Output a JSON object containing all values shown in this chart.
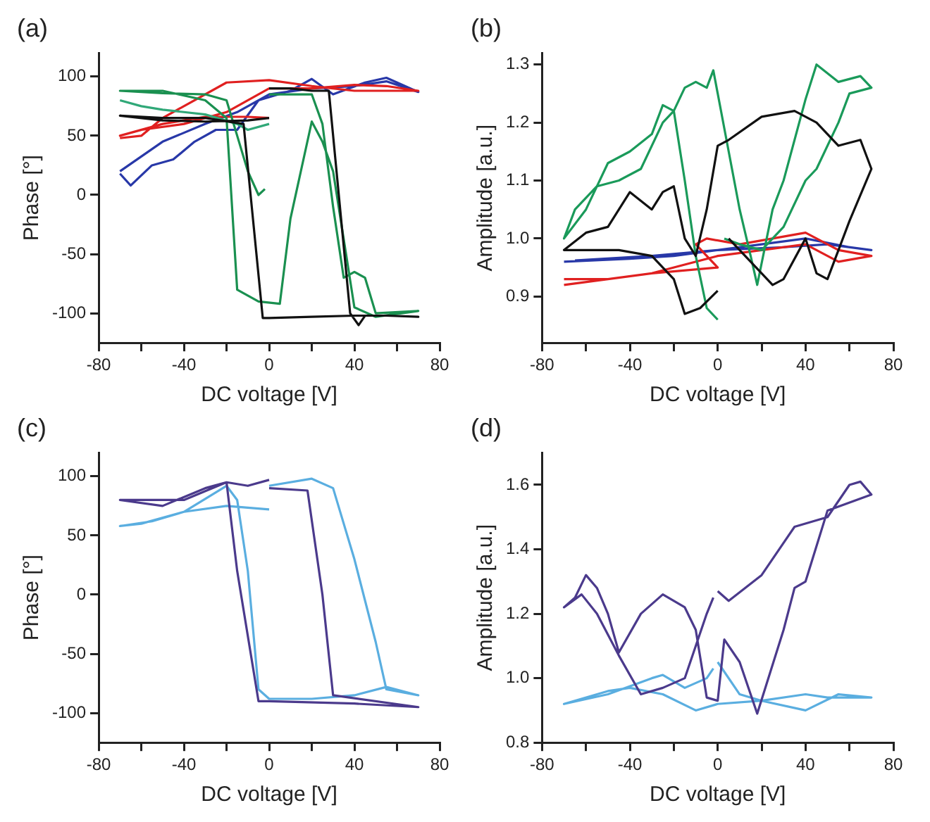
{
  "chart_data": [
    {
      "type": "line",
      "title": "(a)",
      "xlabel": "DC voltage [V]",
      "ylabel": "Phase [°]",
      "xlim": [
        -80,
        80
      ],
      "xticks": [
        -80,
        {
          "value": -60,
          "label": null
        },
        -40,
        {
          "value": -20,
          "label": null
        },
        0,
        {
          "value": 20,
          "label": null
        },
        40,
        {
          "value": 60,
          "label": null
        },
        80
      ],
      "ylim": [
        -125,
        120
      ],
      "yticks": [
        -100,
        -50,
        0,
        50,
        100
      ],
      "series": [
        {
          "color": "#111111",
          "x": [
            0,
            10,
            20,
            28,
            38,
            42,
            45,
            55,
            70,
            55,
            40,
            20,
            0,
            -3,
            -12,
            -30,
            -50,
            -70,
            -50,
            -30,
            -10,
            0
          ],
          "values": [
            90,
            90,
            88,
            88,
            -100,
            -110,
            -102,
            -102,
            -103,
            -102,
            -102,
            -103,
            -104,
            -104,
            60,
            65,
            65,
            67,
            63,
            62,
            63,
            65
          ]
        },
        {
          "color": "#1a9050",
          "x": [
            0,
            10,
            20,
            25,
            30,
            35,
            40,
            45,
            50,
            70,
            50,
            40,
            30,
            25,
            20,
            10,
            5,
            -5,
            -15,
            -20,
            -30,
            -50,
            -70,
            -50,
            -30,
            -20,
            -15,
            -10,
            -5,
            -2
          ],
          "values": [
            85,
            85,
            85,
            60,
            -10,
            -70,
            -65,
            -70,
            -100,
            -98,
            -103,
            -95,
            20,
            45,
            62,
            -20,
            -92,
            -90,
            -80,
            65,
            80,
            88,
            88,
            86,
            85,
            80,
            50,
            20,
            0,
            5
          ]
        },
        {
          "color": "#30a878",
          "x": [
            -70,
            -60,
            -50,
            -40,
            -30,
            -15,
            -10,
            0
          ],
          "values": [
            80,
            75,
            72,
            70,
            68,
            60,
            55,
            60
          ]
        },
        {
          "color": "#e02020",
          "x": [
            -70,
            -60,
            -50,
            -40,
            -20,
            0,
            20,
            40,
            55,
            70,
            55,
            40,
            20,
            0,
            -20,
            -40,
            -60,
            -70,
            -50,
            -30,
            -10,
            0
          ],
          "values": [
            48,
            50,
            65,
            75,
            95,
            97,
            92,
            88,
            88,
            88,
            92,
            93,
            90,
            90,
            70,
            60,
            55,
            50,
            60,
            66,
            66,
            65
          ]
        },
        {
          "color": "#2838a8",
          "x": [
            -70,
            -65,
            -55,
            -45,
            -35,
            -25,
            -15,
            -5,
            10,
            20,
            30,
            45,
            55,
            70,
            55,
            40,
            20,
            0,
            -15,
            -30,
            -50,
            -70
          ],
          "values": [
            18,
            8,
            25,
            30,
            45,
            55,
            55,
            80,
            88,
            98,
            85,
            95,
            99,
            87,
            96,
            92,
            90,
            85,
            70,
            60,
            45,
            20
          ]
        }
      ]
    },
    {
      "type": "line",
      "title": "(b)",
      "xlabel": "DC voltage [V]",
      "ylabel": "Amplitude [a.u.]",
      "xlim": [
        -80,
        80
      ],
      "xticks": [
        -80,
        {
          "value": -60,
          "label": null
        },
        -40,
        {
          "value": -20,
          "label": null
        },
        0,
        {
          "value": 20,
          "label": null
        },
        40,
        {
          "value": 60,
          "label": null
        },
        80
      ],
      "ylim": [
        0.82,
        1.32
      ],
      "yticks": [
        0.9,
        {
          "value": 1,
          "label": "1.0"
        },
        1.1,
        1.2,
        1.3
      ],
      "series": [
        {
          "color": "#111111",
          "x": [
            5,
            15,
            25,
            30,
            40,
            45,
            50,
            60,
            70,
            65,
            55,
            45,
            35,
            20,
            5,
            0,
            -5,
            -10,
            -15,
            -20,
            -25,
            -30,
            -40,
            -50,
            -60,
            -70,
            -60,
            -45,
            -30,
            -20,
            -15,
            -8,
            0
          ],
          "values": [
            1.0,
            0.96,
            0.92,
            0.93,
            1.0,
            0.94,
            0.93,
            1.03,
            1.12,
            1.17,
            1.16,
            1.2,
            1.22,
            1.21,
            1.17,
            1.16,
            1.05,
            0.97,
            1.0,
            1.09,
            1.08,
            1.05,
            1.08,
            1.02,
            1.01,
            0.98,
            0.98,
            0.98,
            0.97,
            0.93,
            0.87,
            0.88,
            0.91
          ]
        },
        {
          "color": "#1a9a5a",
          "x": [
            0,
            -5,
            -10,
            -15,
            -20,
            -25,
            -30,
            -40,
            -50,
            -60,
            -70,
            -65,
            -55,
            -45,
            -35,
            -25,
            -20,
            -15,
            -10,
            -5,
            -2,
            5,
            10,
            15,
            18,
            25,
            30,
            40,
            45,
            55,
            65,
            70,
            60,
            55,
            45,
            40,
            30,
            20,
            10,
            3
          ],
          "values": [
            0.86,
            0.88,
            0.97,
            1.1,
            1.22,
            1.23,
            1.18,
            1.15,
            1.13,
            1.05,
            1.0,
            1.05,
            1.09,
            1.1,
            1.12,
            1.2,
            1.22,
            1.26,
            1.27,
            1.26,
            1.29,
            1.15,
            1.05,
            0.97,
            0.92,
            1.05,
            1.1,
            1.24,
            1.3,
            1.27,
            1.28,
            1.26,
            1.25,
            1.2,
            1.12,
            1.1,
            1.02,
            0.98,
            0.99,
            1.0
          ]
        },
        {
          "color": "#e02020",
          "x": [
            -70,
            -50,
            -30,
            0,
            -10,
            -5,
            10,
            25,
            40,
            55,
            70,
            55,
            40,
            20,
            0,
            -30,
            -50,
            -70
          ],
          "values": [
            0.93,
            0.93,
            0.94,
            0.95,
            0.99,
            1.0,
            0.99,
            1.0,
            1.01,
            0.98,
            0.97,
            0.96,
            0.99,
            0.98,
            0.97,
            0.94,
            0.93,
            0.92
          ]
        },
        {
          "color": "#2838a8",
          "x": [
            -70,
            -40,
            -20,
            0,
            20,
            40,
            60,
            70,
            50,
            30,
            0,
            -30,
            -65
          ],
          "values": [
            0.96,
            0.965,
            0.97,
            0.98,
            0.99,
            1.0,
            0.985,
            0.98,
            0.99,
            0.985,
            0.98,
            0.97,
            0.962
          ]
        }
      ]
    },
    {
      "type": "line",
      "title": "(c)",
      "xlabel": "DC voltage [V]",
      "ylabel": "Phase [°]",
      "xlim": [
        -80,
        80
      ],
      "xticks": [
        -80,
        {
          "value": -60,
          "label": null
        },
        -40,
        {
          "value": -20,
          "label": null
        },
        0,
        {
          "value": 20,
          "label": null
        },
        40,
        {
          "value": 60,
          "label": null
        },
        80
      ],
      "ylim": [
        -125,
        120
      ],
      "yticks": [
        -100,
        -50,
        0,
        50,
        100
      ],
      "series": [
        {
          "color": "#4b3a8c",
          "x": [
            0,
            18,
            25,
            30,
            70,
            40,
            0,
            -5,
            -15,
            -20,
            -40,
            -70,
            -50,
            -30,
            -20,
            -10,
            0
          ],
          "values": [
            90,
            88,
            0,
            -85,
            -95,
            -92,
            -90,
            -90,
            20,
            95,
            80,
            80,
            75,
            90,
            95,
            92,
            97
          ]
        },
        {
          "color": "#5aaee0",
          "x": [
            0,
            20,
            30,
            40,
            50,
            55,
            70,
            55,
            40,
            20,
            0,
            -5,
            -10,
            -15,
            -20,
            -40,
            -60,
            -70,
            -55,
            -40,
            -20,
            0
          ],
          "values": [
            92,
            98,
            90,
            30,
            -40,
            -80,
            -85,
            -78,
            -85,
            -88,
            -88,
            -80,
            20,
            80,
            92,
            70,
            60,
            58,
            62,
            70,
            75,
            72
          ]
        }
      ]
    },
    {
      "type": "line",
      "title": "(d)",
      "xlabel": "DC voltage [V]",
      "ylabel": "Amplitude [a.u.]",
      "xlim": [
        -80,
        80
      ],
      "xticks": [
        -80,
        {
          "value": -60,
          "label": null
        },
        -40,
        {
          "value": -20,
          "label": null
        },
        0,
        {
          "value": 20,
          "label": null
        },
        40,
        {
          "value": 60,
          "label": null
        },
        80
      ],
      "ylim": [
        0.8,
        1.7
      ],
      "yticks": [
        0.8,
        {
          "value": 1,
          "label": "1.0"
        },
        1.2,
        1.4,
        1.6
      ],
      "series": [
        {
          "color": "#4b3a8c",
          "x": [
            0,
            5,
            20,
            35,
            50,
            60,
            65,
            70,
            50,
            40,
            35,
            30,
            18,
            10,
            3,
            0,
            -5,
            -10,
            -15,
            -25,
            -35,
            -45,
            -50,
            -55,
            -60,
            -65,
            -70,
            -62,
            -55,
            -45,
            -35,
            -25,
            -15,
            -5,
            -2
          ],
          "values": [
            1.27,
            1.24,
            1.32,
            1.47,
            1.5,
            1.6,
            1.61,
            1.57,
            1.52,
            1.3,
            1.28,
            1.15,
            0.89,
            1.05,
            1.12,
            0.93,
            0.94,
            1.15,
            1.22,
            1.26,
            1.2,
            1.08,
            1.2,
            1.28,
            1.32,
            1.25,
            1.22,
            1.26,
            1.2,
            1.07,
            0.95,
            0.97,
            1.0,
            1.2,
            1.25
          ]
        },
        {
          "color": "#5aaee0",
          "x": [
            0,
            10,
            20,
            40,
            55,
            70,
            50,
            40,
            20,
            0,
            -10,
            -25,
            -40,
            -50,
            -70,
            -50,
            -30,
            -25,
            -15,
            -5,
            -2
          ],
          "values": [
            1.05,
            0.95,
            0.93,
            0.9,
            0.95,
            0.94,
            0.94,
            0.95,
            0.93,
            0.92,
            0.9,
            0.95,
            0.97,
            0.96,
            0.92,
            0.95,
            1.0,
            1.01,
            0.97,
            1.0,
            1.03
          ]
        }
      ]
    }
  ]
}
